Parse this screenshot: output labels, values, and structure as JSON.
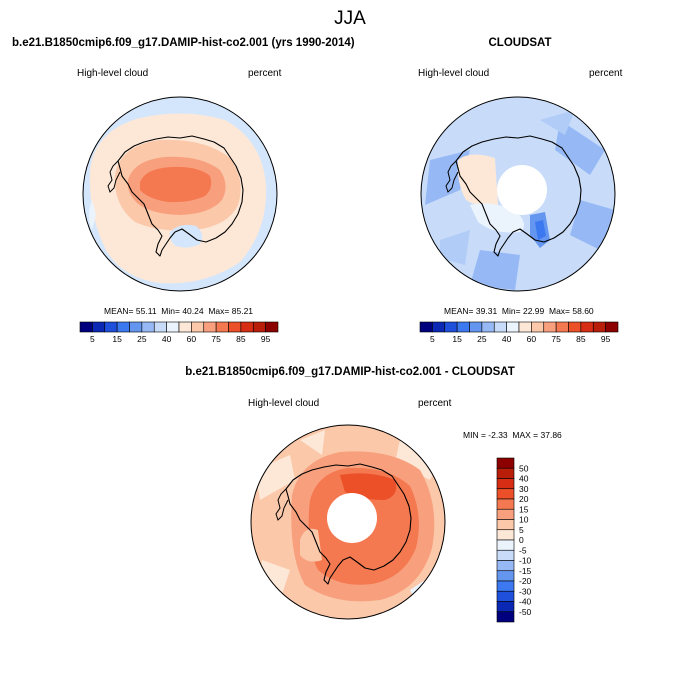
{
  "figure": {
    "title": "JJA"
  },
  "panels": [
    {
      "id": "model",
      "title": "b.e21.B1850cmip6.f09_g17.DAMIP-hist-co2.001 (yrs 1990-2014)",
      "variable": "High-level cloud",
      "units": "percent",
      "stats": {
        "mean_label": "MEAN=",
        "mean": "55.11",
        "min_label": "Min=",
        "min": "40.24",
        "max_label": "Max=",
        "max": "85.21"
      }
    },
    {
      "id": "obs",
      "title": "CLOUDSAT",
      "variable": "High-level cloud",
      "units": "percent",
      "stats": {
        "mean_label": "MEAN=",
        "mean": "39.31",
        "min_label": "Min=",
        "min": "22.99",
        "max_label": "Max=",
        "max": "58.60"
      }
    },
    {
      "id": "diff",
      "title": "b.e21.B1850cmip6.f09_g17.DAMIP-hist-co2.001 - CLOUDSAT",
      "variable": "High-level cloud",
      "units": "percent",
      "stats": {
        "min_label": "MIN =",
        "min": "-2.33",
        "max_label": "MAX =",
        "max": "37.86"
      }
    }
  ],
  "colorbar_abs": {
    "labels": [
      "5",
      "15",
      "25",
      "40",
      "60",
      "75",
      "85",
      "95"
    ],
    "colors": [
      "#00007f",
      "#0a28b4",
      "#1e50dc",
      "#3c78f0",
      "#6496f0",
      "#96b9f5",
      "#c8dcfa",
      "#ebf3fd",
      "#fde8d8",
      "#fbc8aa",
      "#f8a07d",
      "#f47850",
      "#eb5028",
      "#d72d14",
      "#b91e0a",
      "#8c0000"
    ]
  },
  "colorbar_diff": {
    "labels": [
      "50",
      "40",
      "30",
      "20",
      "15",
      "10",
      "5",
      "0",
      "-5",
      "-10",
      "-15",
      "-20",
      "-30",
      "-40",
      "-50"
    ],
    "colors": [
      "#8c0000",
      "#b91e0a",
      "#d72d14",
      "#eb5028",
      "#f47850",
      "#f8a07d",
      "#fbc8aa",
      "#fde8d8",
      "#ebf3fd",
      "#c8dcfa",
      "#96b9f5",
      "#6496f0",
      "#3c78f0",
      "#1e50dc",
      "#0a28b4",
      "#00007f"
    ]
  }
}
